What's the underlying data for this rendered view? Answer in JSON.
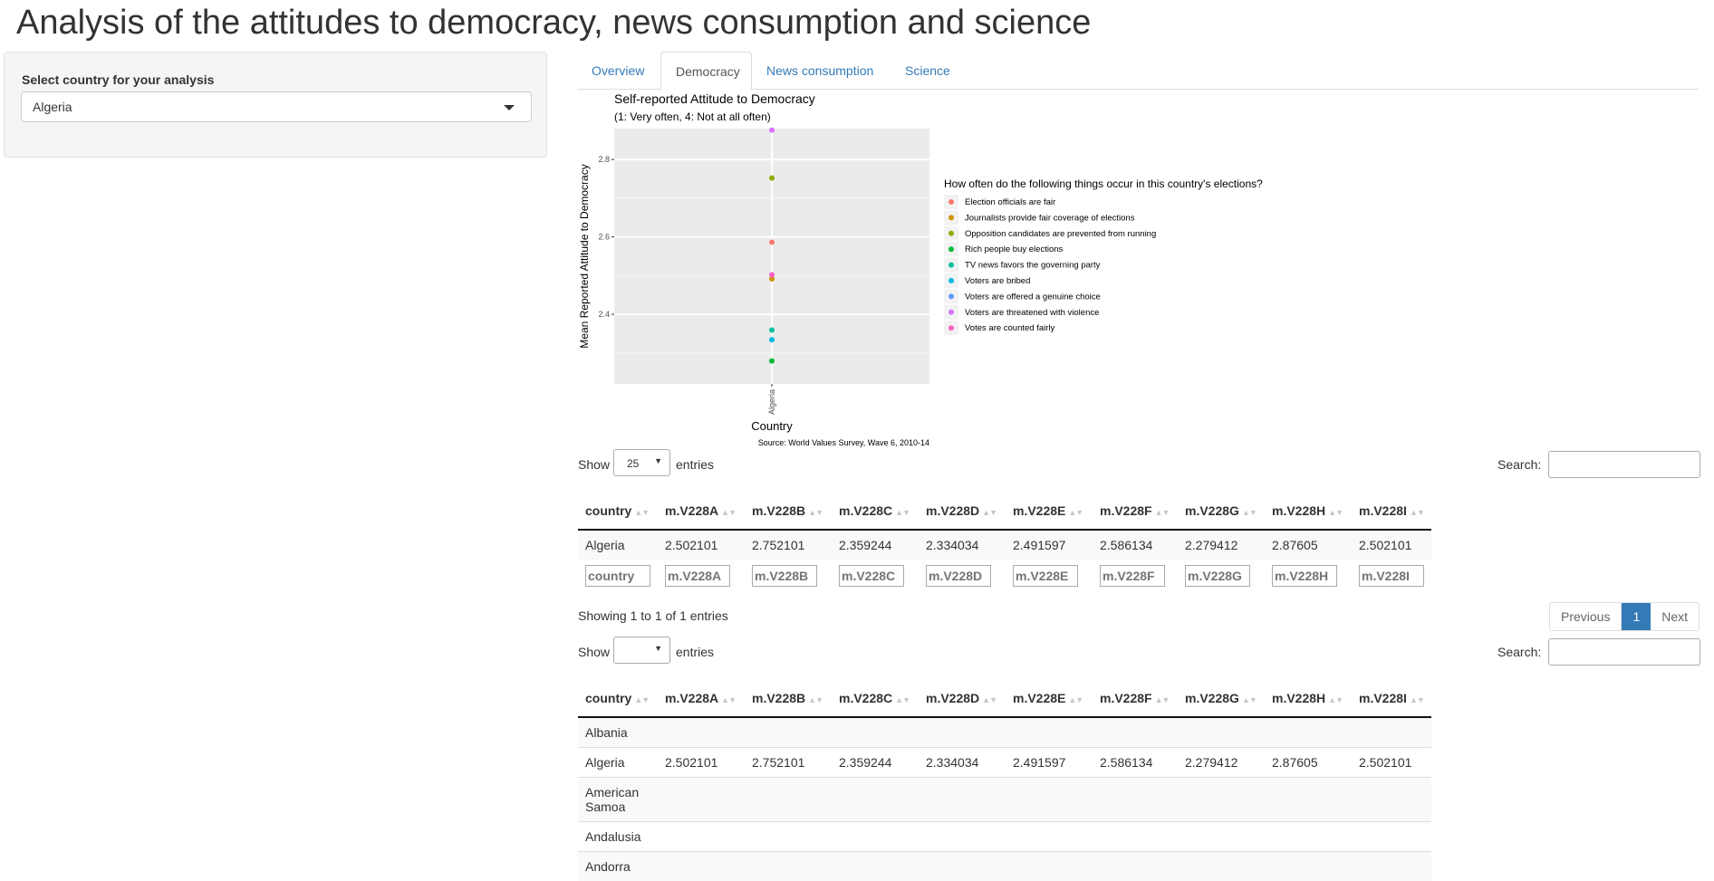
{
  "app_title": "Analysis of the attitudes to democracy, news consumption and science",
  "sidebar": {
    "select_label": "Select country for your analysis",
    "selected_country": "Algeria"
  },
  "tabs": [
    {
      "label": "Overview"
    },
    {
      "label": "Democracy",
      "active": true
    },
    {
      "label": "News consumption"
    },
    {
      "label": "Science"
    }
  ],
  "chart_data": {
    "type": "scatter",
    "title": "Self-reported Attitude to Democracy",
    "subtitle": "(1: Very often, 4: Not at all often)",
    "xlabel": "Country",
    "ylabel": "Mean Reported Attitude to Democracy",
    "caption": "Source: World Values Survey, Wave 6, 2010-14",
    "categories": [
      "Algeria"
    ],
    "yticks": [
      "2.4",
      "2.6",
      "2.8"
    ],
    "ylim": [
      2.22,
      2.88
    ],
    "grid": true,
    "legend": {
      "title": "How often do the following things occur in this country's elections?",
      "position": "right"
    },
    "series": [
      {
        "name": "Election officials are fair",
        "color": "#F8766D",
        "values": [
          2.586134
        ]
      },
      {
        "name": "Journalists provide fair coverage of elections",
        "color": "#D39200",
        "values": [
          2.491597
        ]
      },
      {
        "name": "Opposition candidates are prevented from running",
        "color": "#93AA00",
        "values": [
          2.752101
        ]
      },
      {
        "name": "Rich people buy elections",
        "color": "#00BA38",
        "values": [
          2.279412
        ]
      },
      {
        "name": "TV news favors the governing party",
        "color": "#00C19F",
        "values": [
          2.359244
        ]
      },
      {
        "name": "Voters are bribed",
        "color": "#00B9E3",
        "values": [
          2.334034
        ]
      },
      {
        "name": "Voters are offered a genuine choice",
        "color": "#619CFF",
        "values": [
          2.502101
        ]
      },
      {
        "name": "Voters are threatened with violence",
        "color": "#DB72FB",
        "values": [
          2.87605
        ]
      },
      {
        "name": "Votes are counted fairly",
        "color": "#FF61C3",
        "values": [
          2.502101
        ]
      }
    ]
  },
  "table1": {
    "show_label": "Show",
    "entries_label": "entries",
    "length_value": "25",
    "search_label": "Search:",
    "headers": [
      "country",
      "m.V228A",
      "m.V228B",
      "m.V228C",
      "m.V228D",
      "m.V228E",
      "m.V228F",
      "m.V228G",
      "m.V228H",
      "m.V228I"
    ],
    "rows": [
      [
        "Algeria",
        "2.502101",
        "2.752101",
        "2.359244",
        "2.334034",
        "2.491597",
        "2.586134",
        "2.279412",
        "2.87605",
        "2.502101"
      ]
    ],
    "filters": [
      "country",
      "m.V228A",
      "m.V228B",
      "m.V228C",
      "m.V228D",
      "m.V228E",
      "m.V228F",
      "m.V228G",
      "m.V228H",
      "m.V228I"
    ],
    "info": "Showing 1 to 1 of 1 entries",
    "pager": {
      "previous": "Previous",
      "current": "1",
      "next": "Next"
    }
  },
  "table2": {
    "show_label": "Show",
    "entries_label": "entries",
    "length_value": "",
    "search_label": "Search:",
    "headers": [
      "country",
      "m.V228A",
      "m.V228B",
      "m.V228C",
      "m.V228D",
      "m.V228E",
      "m.V228F",
      "m.V228G",
      "m.V228H",
      "m.V228I"
    ],
    "rows": [
      [
        "Albania",
        "",
        "",
        "",
        "",
        "",
        "",
        "",
        "",
        ""
      ],
      [
        "Algeria",
        "2.502101",
        "2.752101",
        "2.359244",
        "2.334034",
        "2.491597",
        "2.586134",
        "2.279412",
        "2.87605",
        "2.502101"
      ],
      [
        "American Samoa",
        "",
        "",
        "",
        "",
        "",
        "",
        "",
        "",
        ""
      ],
      [
        "Andalusia",
        "",
        "",
        "",
        "",
        "",
        "",
        "",
        "",
        ""
      ],
      [
        "Andorra",
        "",
        "",
        "",
        "",
        "",
        "",
        "",
        "",
        ""
      ]
    ]
  }
}
